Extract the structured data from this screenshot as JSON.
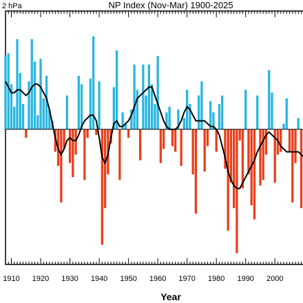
{
  "chart_data": {
    "type": "bar",
    "title": "NP Index (Nov-Mar) 1900-2025",
    "unit_label": "2 hPa",
    "xlabel": "Year",
    "ylabel": "",
    "x_tick_labels": [
      "1910",
      "1920",
      "1930",
      "1940",
      "1950",
      "1960",
      "1970",
      "1980",
      "1990",
      "2000"
    ],
    "x_ticks": [
      1910,
      1920,
      1930,
      1940,
      1950,
      1960,
      1970,
      1980,
      1990,
      2000
    ],
    "xlim": [
      1908,
      2011
    ],
    "ylim": [
      -4.8,
      4.2
    ],
    "legend": false,
    "grid": false,
    "colors": {
      "positive": "#29b6e0",
      "negative": "#e8401c",
      "smooth_line": "#000000",
      "axis": "#000000"
    },
    "years": [
      1908,
      1909,
      1910,
      1911,
      1912,
      1913,
      1914,
      1915,
      1916,
      1917,
      1918,
      1919,
      1920,
      1921,
      1922,
      1923,
      1924,
      1925,
      1926,
      1927,
      1928,
      1929,
      1930,
      1931,
      1932,
      1933,
      1934,
      1935,
      1936,
      1937,
      1938,
      1939,
      1940,
      1941,
      1942,
      1943,
      1944,
      1945,
      1946,
      1947,
      1948,
      1949,
      1950,
      1951,
      1952,
      1953,
      1954,
      1955,
      1956,
      1957,
      1958,
      1959,
      1960,
      1961,
      1962,
      1963,
      1964,
      1965,
      1966,
      1967,
      1968,
      1969,
      1970,
      1971,
      1972,
      1973,
      1974,
      1975,
      1976,
      1977,
      1978,
      1979,
      1980,
      1981,
      1982,
      1983,
      1984,
      1985,
      1986,
      1987,
      1988,
      1989,
      1990,
      1991,
      1992,
      1993,
      1994,
      1995,
      1996,
      1997,
      1998,
      1999,
      2000,
      2001,
      2002,
      2003,
      2004,
      2005,
      2006,
      2007,
      2008,
      2009,
      2010
    ],
    "values": [
      2.6,
      2.7,
      1.6,
      0.8,
      3.2,
      2.0,
      0.9,
      -0.3,
      1.7,
      3.2,
      2.4,
      0.5,
      2.5,
      1.1,
      1.9,
      0.7,
      0.3,
      -0.8,
      -1.3,
      -2.6,
      -0.7,
      1.2,
      -1.2,
      -1.7,
      -0.9,
      1.9,
      1.6,
      -1.8,
      -0.3,
      1.8,
      3.3,
      -0.2,
      1.7,
      -4.1,
      -2.8,
      -1.6,
      -0.5,
      1.5,
      2.8,
      -1.8,
      0.6,
      0.2,
      -0.3,
      0.7,
      2.3,
      1.4,
      -1.1,
      2.3,
      1.2,
      2.3,
      1.6,
      0.9,
      2.6,
      -1.2,
      -0.7,
      0.6,
      0.8,
      -0.6,
      -0.8,
      0.7,
      -1.3,
      0.4,
      1.4,
      0.9,
      -1.6,
      -3.0,
      1.2,
      1.7,
      -1.5,
      -0.6,
      1.0,
      0.6,
      -0.8,
      0.9,
      1.2,
      -1.4,
      -3.6,
      -1.9,
      -2.8,
      -4.4,
      -0.4,
      -2.1,
      1.4,
      -1.6,
      -2.7,
      -3.2,
      1.2,
      -2.0,
      -1.8,
      -0.9,
      2.1,
      1.3,
      -1.9,
      -0.9,
      -0.8,
      0.2,
      1.1,
      -0.8,
      -2.6,
      -1.2,
      0.4,
      -2.8,
      -3.1
    ],
    "smoothed": [
      1.7,
      1.5,
      1.3,
      1.3,
      1.4,
      1.4,
      1.3,
      1.2,
      1.3,
      1.5,
      1.6,
      1.6,
      1.5,
      1.3,
      1.1,
      0.7,
      0.2,
      -0.3,
      -0.7,
      -0.9,
      -0.7,
      -0.4,
      -0.3,
      -0.4,
      -0.4,
      -0.2,
      0.1,
      0.3,
      0.4,
      0.5,
      0.5,
      0.3,
      -0.3,
      -1.0,
      -1.2,
      -0.9,
      -0.3,
      0.2,
      0.3,
      0.1,
      0.1,
      0.2,
      0.3,
      0.5,
      0.8,
      1.1,
      1.2,
      1.3,
      1.4,
      1.5,
      1.5,
      1.2,
      0.9,
      0.6,
      0.3,
      0.1,
      0.0,
      0.0,
      0.0,
      0.1,
      0.3,
      0.6,
      0.8,
      0.7,
      0.5,
      0.3,
      0.3,
      0.3,
      0.3,
      0.2,
      0.1,
      0.1,
      0.0,
      -0.2,
      -0.6,
      -1.0,
      -1.5,
      -1.8,
      -2.0,
      -2.1,
      -2.1,
      -1.9,
      -1.7,
      -1.5,
      -1.3,
      -1.1,
      -0.8,
      -0.6,
      -0.4,
      -0.2,
      -0.1,
      -0.2,
      -0.3,
      -0.4,
      -0.6,
      -0.7,
      -0.8,
      -0.8,
      -0.8,
      -0.8,
      -0.8,
      -0.9,
      -1.0
    ]
  }
}
